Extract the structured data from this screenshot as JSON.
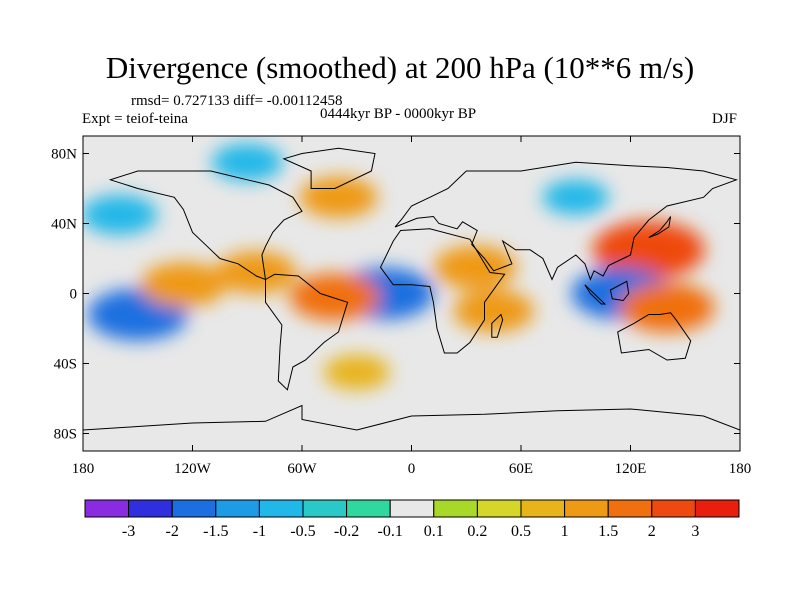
{
  "chart_data": {
    "type": "heatmap",
    "title": "Divergence (smoothed) at 200 hPa (10**6 m/s)",
    "stats": "rmsd= 0.727133 diff= -0.00112458",
    "experiment": "Expt = teiof-teina",
    "period": "0444kyr BP - 0000kyr BP",
    "season": "DJF",
    "xlim": [
      -180,
      180
    ],
    "ylim": [
      -90,
      90
    ],
    "x_ticks": [
      {
        "value": -180,
        "label": "180"
      },
      {
        "value": -120,
        "label": "120W"
      },
      {
        "value": -60,
        "label": "60W"
      },
      {
        "value": 0,
        "label": "0"
      },
      {
        "value": 60,
        "label": "60E"
      },
      {
        "value": 120,
        "label": "120E"
      },
      {
        "value": 180,
        "label": "180"
      }
    ],
    "y_ticks": [
      {
        "value": 80,
        "label": "80N"
      },
      {
        "value": 40,
        "label": "40N"
      },
      {
        "value": 0,
        "label": "0"
      },
      {
        "value": -40,
        "label": "40S"
      },
      {
        "value": -80,
        "label": "80S"
      }
    ],
    "colorbar": {
      "colors": [
        "#8a2be2",
        "#2f2fe0",
        "#1c6fe0",
        "#1e9be6",
        "#20b8e8",
        "#2ac9c8",
        "#30d8a0",
        "#e8e8e8",
        "#a8d828",
        "#d6d62a",
        "#e8b41c",
        "#ee9a14",
        "#f07010",
        "#ee4a10",
        "#e81e0e"
      ],
      "labels": [
        "-3",
        "-2",
        "-1.5",
        "-1",
        "-0.5",
        "-0.2",
        "-0.1",
        "0.1",
        "0.2",
        "0.5",
        "1",
        "1.5",
        "2",
        "3"
      ],
      "levels": [
        -3,
        -2,
        -1.5,
        -1,
        -0.5,
        -0.2,
        -0.1,
        0.1,
        0.2,
        0.5,
        1,
        1.5,
        2,
        3
      ]
    },
    "features": [
      {
        "name": "northwest-pacific-maximum",
        "lon": 130,
        "lat": 25,
        "value": 2.5
      },
      {
        "name": "maritime-continent-minimum",
        "lon": 115,
        "lat": 0,
        "value": -2
      },
      {
        "name": "indonesia-east-maximum",
        "lon": 140,
        "lat": -8,
        "value": 1.8
      },
      {
        "name": "equatorial-atlantic-minimum",
        "lon": -15,
        "lat": 0,
        "value": -2
      },
      {
        "name": "brazil-maximum",
        "lon": -42,
        "lat": -2,
        "value": 1.6
      },
      {
        "name": "south-pacific-minimum",
        "lon": -150,
        "lat": -12,
        "value": -2
      },
      {
        "name": "east-pacific-maximum",
        "lon": -125,
        "lat": 5,
        "value": 1.4
      },
      {
        "name": "africa-indian-ocean-maximum",
        "lon": 35,
        "lat": 15,
        "value": 1.3
      },
      {
        "name": "southern-africa-maximum",
        "lon": 45,
        "lat": -10,
        "value": 1.2
      },
      {
        "name": "central-america-maximum",
        "lon": -85,
        "lat": 12,
        "value": 1.2
      },
      {
        "name": "north-atlantic-maximum",
        "lon": -40,
        "lat": 55,
        "value": 1.1
      },
      {
        "name": "north-pacific-minimum",
        "lon": -160,
        "lat": 45,
        "value": -1
      },
      {
        "name": "arctic-canada-minimum",
        "lon": -90,
        "lat": 75,
        "value": -0.8
      },
      {
        "name": "siberia-minimum",
        "lon": 90,
        "lat": 55,
        "value": -0.6
      },
      {
        "name": "southern-ocean-maximum",
        "lon": -30,
        "lat": -45,
        "value": 0.6
      }
    ]
  }
}
